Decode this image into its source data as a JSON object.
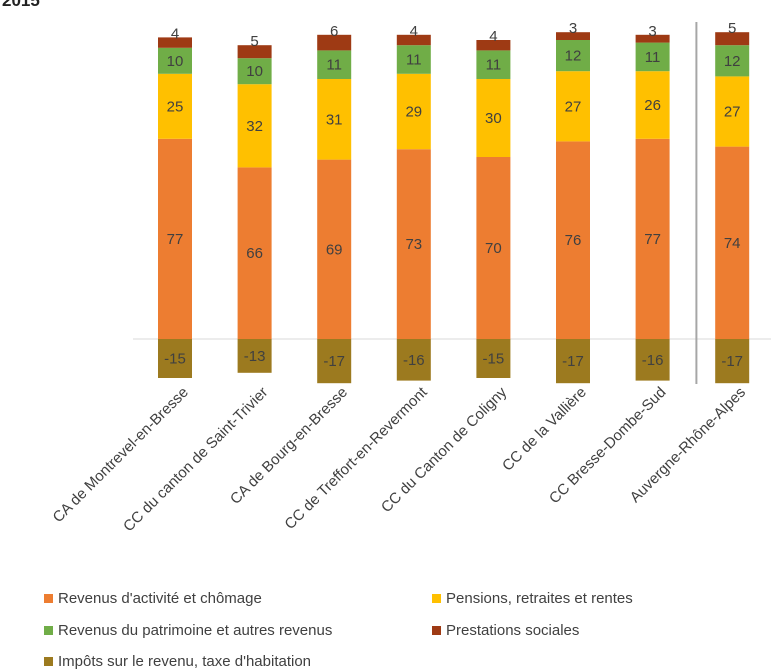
{
  "title_fragment": "2015",
  "chart_data": {
    "type": "bar",
    "stacked": true,
    "categories": [
      "CA de Montrevel-en-Bresse",
      "CC du canton de Saint-Trivier",
      "CA de Bourg-en-Bresse",
      "CC de Treffort-en-Revermont",
      "CC du Canton de Coligny",
      "CC de la Vallière",
      "CC Bresse-Dombe-Sud",
      "Auvergne-Rhône-Alpes"
    ],
    "series": [
      {
        "name": "Revenus d'activité et chômage",
        "color": "#ED7D31",
        "values": [
          77,
          66,
          69,
          73,
          70,
          76,
          77,
          74
        ]
      },
      {
        "name": "Pensions, retraites et rentes",
        "color": "#FFC000",
        "values": [
          25,
          32,
          31,
          29,
          30,
          27,
          26,
          27
        ]
      },
      {
        "name": "Revenus du patrimoine et autres revenus",
        "color": "#70AD47",
        "values": [
          10,
          10,
          11,
          11,
          11,
          12,
          11,
          12
        ]
      },
      {
        "name": "Prestations sociales",
        "color": "#9E3A14",
        "values": [
          4,
          5,
          6,
          4,
          4,
          3,
          3,
          5
        ]
      },
      {
        "name": "Impôts sur le revenu, taxe d'habitation",
        "color": "#9C7A1F",
        "values": [
          -15,
          -13,
          -17,
          -16,
          -15,
          -17,
          -16,
          -17
        ]
      }
    ],
    "ylim": [
      -17,
      116
    ],
    "separator_before_last": true,
    "legend_position": "bottom"
  }
}
